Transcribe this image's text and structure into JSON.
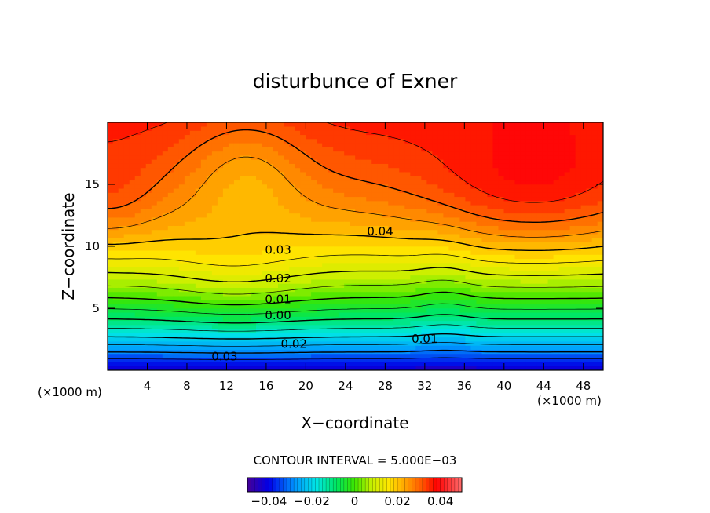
{
  "chart_data": {
    "type": "contour",
    "title": "disturbunce of Exner",
    "xlabel": "X−coordinate",
    "ylabel": "Z−coordinate",
    "x_unit_left": "(×1000 m)",
    "x_unit_right": "(×1000 m)",
    "xlim": [
      0,
      50
    ],
    "ylim": [
      0,
      20
    ],
    "x_ticks": [
      4,
      8,
      12,
      16,
      20,
      24,
      28,
      32,
      36,
      40,
      44,
      48
    ],
    "y_ticks": [
      5,
      10,
      15
    ],
    "contour_interval_label": "CONTOUR INTERVAL = 5.000E−03",
    "contour_interval": 0.005,
    "negative_contours_dashed": true,
    "contour_labels": [
      {
        "text": "0.04",
        "x": 27.5,
        "y": 10.9
      },
      {
        "text": "0.03",
        "x": 17.2,
        "y": 9.4
      },
      {
        "text": "0.02",
        "x": 17.2,
        "y": 7.1
      },
      {
        "text": "0.01",
        "x": 17.2,
        "y": 5.4
      },
      {
        "text": "0.00",
        "x": 17.2,
        "y": 4.1
      },
      {
        "text": "0.02",
        "x": 18.8,
        "y": 1.8
      },
      {
        "text": "0.01",
        "x": 32.0,
        "y": 2.2
      },
      {
        "text": "0.03",
        "x": 11.8,
        "y": 0.8
      }
    ],
    "levels": [
      -0.035,
      -0.03,
      -0.025,
      -0.02,
      -0.015,
      -0.01,
      -0.005,
      0.0,
      0.005,
      0.01,
      0.015,
      0.02,
      0.025,
      0.03,
      0.035,
      0.04,
      0.045
    ],
    "colorbar": {
      "range": [
        -0.05,
        0.05
      ],
      "tick_labels": [
        "−0.04",
        "−0.02",
        "0",
        "0.02",
        "0.04"
      ],
      "tick_values": [
        -0.04,
        -0.02,
        0,
        0.02,
        0.04
      ]
    }
  }
}
